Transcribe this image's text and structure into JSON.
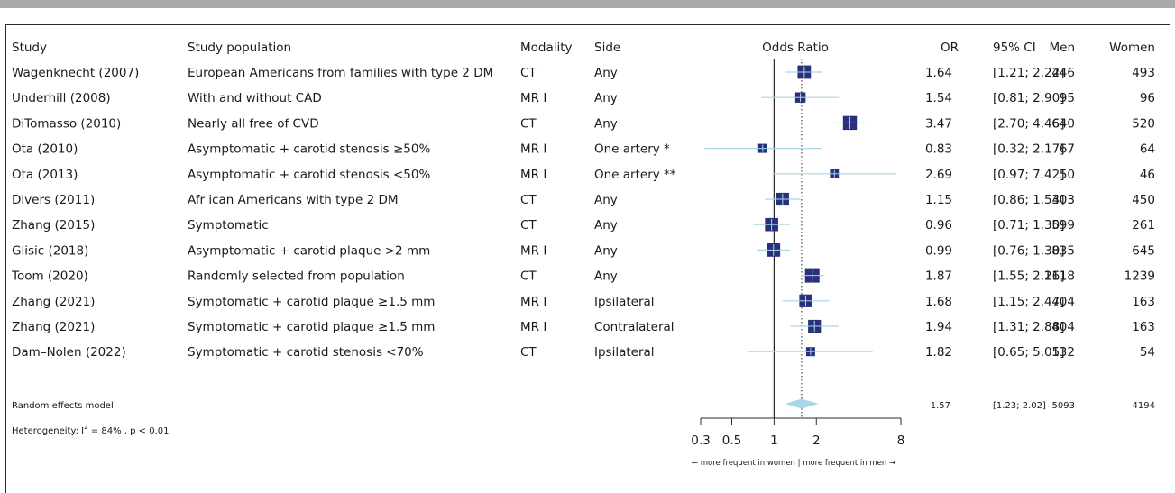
{
  "chart_data": {
    "type": "forest",
    "headers": {
      "study": "Study",
      "population": "Study population",
      "modality": "Modality",
      "side": "Side",
      "plot": "Odds Ratio",
      "or": "OR",
      "ci": "95% CI",
      "men": "Men",
      "women": "Women"
    },
    "rows": [
      {
        "study": "Wagenknecht (2007)",
        "population": "European Americans from families with type 2 DM",
        "modality": "CT",
        "side": "Any",
        "or": 1.64,
        "lo": 1.21,
        "hi": 2.22,
        "or_text": "1.64",
        "ci_text": "[1.21; 2.22]",
        "men": "446",
        "women": "493",
        "weight": 0.9
      },
      {
        "study": "Underhill (2008)",
        "population": "With and without CAD",
        "modality": "MR I",
        "side": "Any",
        "or": 1.54,
        "lo": 0.81,
        "hi": 2.9,
        "or_text": "1.54",
        "ci_text": "[0.81; 2.90]",
        "men": "95",
        "women": "96",
        "weight": 0.62
      },
      {
        "study": "DiTomasso (2010)",
        "population": "Nearly all free of CVD",
        "modality": "CT",
        "side": "Any",
        "or": 3.47,
        "lo": 2.7,
        "hi": 4.46,
        "or_text": "3.47",
        "ci_text": "[2.70; 4.46]",
        "men": "640",
        "women": "520",
        "weight": 0.95
      },
      {
        "study": "Ota (2010)",
        "population": "Asymptomatic + carotid stenosis ≥50%",
        "modality": "MR I",
        "side": "One artery *",
        "or": 0.83,
        "lo": 0.32,
        "hi": 2.17,
        "or_text": "0.83",
        "ci_text": "[0.32; 2.17]",
        "men": "67",
        "women": "64",
        "weight": 0.5
      },
      {
        "study": "Ota (2013)",
        "population": "Asymptomatic + carotid stenosis <50%",
        "modality": "MR I",
        "side": "One artery **",
        "or": 2.69,
        "lo": 0.97,
        "hi": 7.42,
        "or_text": "2.69",
        "ci_text": "[0.97; 7.42]",
        "men": "50",
        "women": "46",
        "weight": 0.48
      },
      {
        "study": "Divers (2011)",
        "population": "Afr ican Americans with type 2 DM",
        "modality": "CT",
        "side": "Any",
        "or": 1.15,
        "lo": 0.86,
        "hi": 1.54,
        "or_text": "1.15",
        "ci_text": "[0.86; 1.54]",
        "men": "303",
        "women": "450",
        "weight": 0.85
      },
      {
        "study": "Zhang (2015)",
        "population": "Symptomatic",
        "modality": "CT",
        "side": "Any",
        "or": 0.96,
        "lo": 0.71,
        "hi": 1.3,
        "or_text": "0.96",
        "ci_text": "[0.71; 1.30]",
        "men": "599",
        "women": "261",
        "weight": 0.88
      },
      {
        "study": "Glisic (2018)",
        "population": "Asymptomatic + carotid plaque >2 mm",
        "modality": "MR I",
        "side": "Any",
        "or": 0.99,
        "lo": 0.76,
        "hi": 1.3,
        "or_text": "0.99",
        "ci_text": "[0.76; 1.30]",
        "men": "835",
        "women": "645",
        "weight": 0.9
      },
      {
        "study": "Toom (2020)",
        "population": "Randomly selected from population",
        "modality": "CT",
        "side": "Any",
        "or": 1.87,
        "lo": 1.55,
        "hi": 2.26,
        "or_text": "1.87",
        "ci_text": "[1.55; 2.26]",
        "men": "1118",
        "women": "1239",
        "weight": 1.0
      },
      {
        "study": "Zhang (2021)",
        "population": "Symptomatic + carotid plaque ≥1.5 mm",
        "modality": "MR I",
        "side": "Ipsilateral",
        "or": 1.68,
        "lo": 1.15,
        "hi": 2.47,
        "or_text": "1.68",
        "ci_text": "[1.15; 2.47]",
        "men": "404",
        "women": "163",
        "weight": 0.85
      },
      {
        "study": "Zhang (2021)",
        "population": "Symptomatic + carotid plaque ≥1.5 mm",
        "modality": "MR I",
        "side": "Contralateral",
        "or": 1.94,
        "lo": 1.31,
        "hi": 2.88,
        "or_text": "1.94",
        "ci_text": "[1.31; 2.88]",
        "men": "404",
        "women": "163",
        "weight": 0.85
      },
      {
        "study": "Dam–Nolen (2022)",
        "population": "Symptomatic + carotid stenosis <70%",
        "modality": "CT",
        "side": "Ipsilateral",
        "or": 1.82,
        "lo": 0.65,
        "hi": 5.05,
        "or_text": "1.82",
        "ci_text": "[0.65; 5.05]",
        "men": "132",
        "women": "54",
        "weight": 0.5
      }
    ],
    "summary": {
      "label": "Random effects model",
      "or": 1.57,
      "lo": 1.23,
      "hi": 2.02,
      "or_text": "1.57",
      "ci_text": "[1.23; 2.02]",
      "men": "5093",
      "women": "4194"
    },
    "heterogeneity": {
      "prefix": "Heterogeneity:  I",
      "sup": "2",
      "suffix": " = 84% ,  p < 0.01"
    },
    "x_scale": "log",
    "xlim": [
      0.3,
      8
    ],
    "xticks": [
      0.3,
      0.5,
      1,
      2,
      8
    ],
    "xtick_labels": [
      "0.3",
      "0.5",
      "1",
      "2",
      "8"
    ],
    "ref_line": 1,
    "direction_label": "← more frequent in women   |   more frequent in men →",
    "colors": {
      "square": "#27307a",
      "ci_line": "#a9d7e8",
      "diamond": "#a9d7e8",
      "text": "#1a1a1a",
      "frame": "#2a2a2a",
      "topbar": "#a9a9ad"
    }
  }
}
